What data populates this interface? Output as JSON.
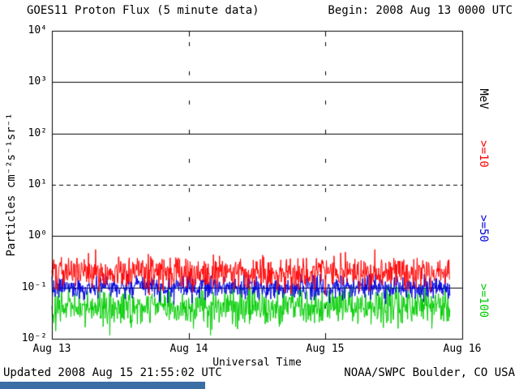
{
  "header": {
    "begin_label": "Begin: 2008 Aug 13 0000 UTC"
  },
  "footer": {
    "updated": "Updated 2008 Aug 15 21:55:02 UTC",
    "source": "NOAA/SWPC Boulder, CO USA"
  },
  "decor": {
    "bottom_bar_color": "#3a6ea5"
  },
  "chart_data": {
    "type": "line",
    "title": "GOES11 Proton Flux (5 minute data)",
    "xlabel": "Universal Time",
    "ylabel": "Particles cm⁻²s⁻¹sr⁻¹",
    "right_axis_label": "MeV",
    "x_ticks": [
      "Aug 13",
      "Aug 14",
      "Aug 15",
      "Aug 16"
    ],
    "y_ticks": [
      "10⁴",
      "10³",
      "10²",
      "10¹",
      "10⁰",
      "10⁻¹",
      "10⁻²"
    ],
    "y_log10_range": [
      -2,
      4
    ],
    "x_range_days": 3,
    "start": "2008 Aug 13 0000 UTC",
    "end": "2008 Aug 15 21:55 UTC",
    "points_per_day": 288,
    "n_points": 839,
    "axis_color": "#000000",
    "grid": {
      "solid_decades_log10": [
        3,
        2,
        0,
        -1
      ],
      "dashed_decade_log10": 1,
      "day_boundary_days": [
        1,
        2
      ]
    },
    "series": [
      {
        "name": ">=10",
        "unit": "MeV",
        "color": "#ff0000",
        "mean_flux": 0.2,
        "mean_log10": -0.7,
        "sd_log10": 0.16,
        "min_log10": -1.15,
        "max_log10": -0.26,
        "seed": 101
      },
      {
        "name": ">=50",
        "unit": "MeV",
        "color": "#0000dd",
        "mean_flux": 0.1,
        "mean_log10": -1.0,
        "sd_log10": 0.11,
        "min_log10": -1.42,
        "max_log10": -0.74,
        "seed": 202
      },
      {
        "name": ">=100",
        "unit": "MeV",
        "color": "#00cc00",
        "mean_flux": 0.042,
        "mean_log10": -1.38,
        "sd_log10": 0.17,
        "min_log10": -1.93,
        "max_log10": -0.98,
        "seed": 303
      }
    ]
  }
}
